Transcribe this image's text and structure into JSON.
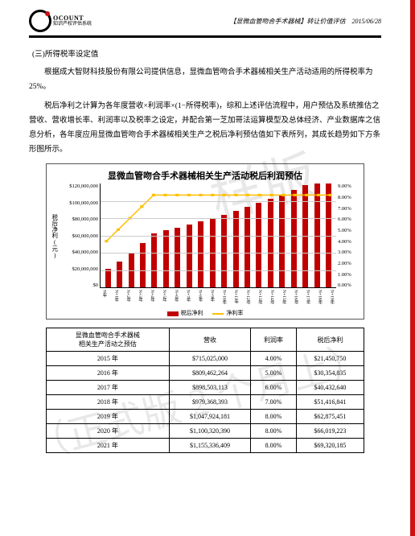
{
  "header": {
    "brand": "OCOUNT",
    "brand_sub": "知识产权评估系统",
    "doc_title": "【显微血管吻合手术器械】转让价值评估",
    "date": "2015/06/28"
  },
  "section_title": "(三)所得税率设定值",
  "para1": "根据成大智财科技股份有限公司提供信息，显微血管吻合手术器械相关生产活动适用的所得税率为 25%。",
  "para2": "税后净利之计算为各年度营收×利润率×(1−所得税率)，综和上述评估流程中，用户预估及系统推估之营收、营收增长率、利润率以及税率之设定，并配合第一芝加哥法运算模型及总体经济、产业数据库之信息分析，各年度应用显微血管吻合手术器械相关生产之税后净利预估值如下表所列，其成长趋势如下方条形图所示。",
  "chart": {
    "title": "显微血管吻合手术器械相关生产活动税后利润预估",
    "ylabel": "税后净利(元)",
    "legend_bar": "税后净利",
    "legend_line": "净利率",
    "bar_color": "#c00000",
    "line_color": "#ffc000",
    "bg": "#ffffff",
    "grid": "#cccccc",
    "ymax": 120000000,
    "yticks": [
      "$120,000,000",
      "$100,000,000",
      "$80,000,000",
      "$60,000,000",
      "$40,000,000",
      "$20,000,000",
      "$0"
    ],
    "y2max": 9,
    "y2ticks": [
      "9.00%",
      "8.00%",
      "7.00%",
      "6.00%",
      "5.00%",
      "4.00%",
      "3.00%",
      "2.00%",
      "1.00%",
      "0.00%"
    ],
    "categories": [
      "N年",
      "N+1年",
      "N+2年",
      "N+3年",
      "N+4年",
      "N+5年",
      "N+6年",
      "N+7年",
      "N+8年",
      "N+9年",
      "N+10年",
      "N+11年",
      "N+12年",
      "N+13年",
      "N+14年",
      "N+15年",
      "N+16年",
      "N+17年",
      "N+18年",
      "N+19年"
    ],
    "bar_values": [
      21450750,
      30354835,
      40432640,
      51416841,
      62875451,
      66019223,
      69320185,
      72786191,
      76425503,
      80246775,
      84259115,
      88472072,
      92895673,
      97540651,
      102418187,
      107539768,
      112917253,
      118563120,
      124490770,
      130714310
    ],
    "line_values": [
      4,
      5,
      6,
      7,
      8,
      8,
      8,
      8,
      8,
      8,
      8,
      8,
      8,
      8,
      8,
      8,
      8,
      8,
      8,
      8
    ]
  },
  "table": {
    "header_col1_l1": "显微血管吻合手术器械",
    "header_col1_l2": "相关生产活动之预估",
    "header_col2": "营收",
    "header_col3": "利润率",
    "header_col4": "税后净利",
    "rows": [
      {
        "year": "2015 年",
        "rev": "$715,025,000",
        "rate": "4.00%",
        "profit": "$21,450,750"
      },
      {
        "year": "2016 年",
        "rev": "$809,462,264",
        "rate": "5.00%",
        "profit": "$30,354,835"
      },
      {
        "year": "2017 年",
        "rev": "$898,503,113",
        "rate": "6.00%",
        "profit": "$40,432,640"
      },
      {
        "year": "2018 年",
        "rev": "$979,368,393",
        "rate": "7.00%",
        "profit": "$51,416,841"
      },
      {
        "year": "2019 年",
        "rev": "$1,047,924,181",
        "rate": "8.00%",
        "profit": "$62,875,451"
      },
      {
        "year": "2020 年",
        "rev": "$1,100,320,390",
        "rate": "8.00%",
        "profit": "$66,019,223"
      },
      {
        "year": "2021 年",
        "rev": "$1,155,336,409",
        "rate": "8.00%",
        "profit": "$69,320,185"
      }
    ]
  },
  "watermarks": {
    "top": "样版",
    "bottom": "（正式版 2 个月上）"
  }
}
